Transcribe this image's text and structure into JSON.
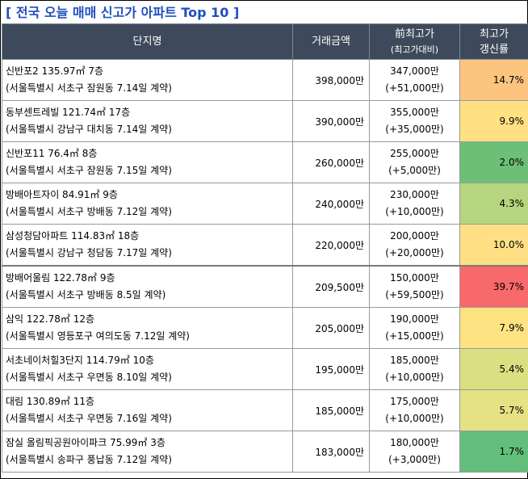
{
  "title": "[ 전국 오늘 매매 신고가 아파트 Top 10 ]",
  "headers": {
    "complex": "단지명",
    "amount": "거래금액",
    "prev_main": "前최고가",
    "prev_sub": "(최고가대비)",
    "rate_line1": "최고가",
    "rate_line2": "갱신률"
  },
  "rows": [
    {
      "name": "신반포2 135.97㎡ 7층",
      "location": "(서울특별시 서초구 잠원동 7.14일 계약)",
      "amount": "398,000만",
      "prev": "347,000만",
      "diff": "(+51,000만)",
      "rate": "14.7%",
      "rate_color": "#fcc47f"
    },
    {
      "name": "동부센트레빌 121.74㎡ 17층",
      "location": "(서울특별시 강남구 대치동 7.14일 계약)",
      "amount": "390,000만",
      "prev": "355,000만",
      "diff": "(+35,000만)",
      "rate": "9.9%",
      "rate_color": "#ffe184"
    },
    {
      "name": "신반포11 76.4㎡ 8층",
      "location": "(서울특별시 서초구 잠원동 7.15일 계약)",
      "amount": "260,000만",
      "prev": "255,000만",
      "diff": "(+5,000만)",
      "rate": "2.0%",
      "rate_color": "#6dbe76"
    },
    {
      "name": "방배아트자이 84.91㎡ 9층",
      "location": "(서울특별시 서초구 방배동 7.12일 계약)",
      "amount": "240,000만",
      "prev": "230,000만",
      "diff": "(+10,000만)",
      "rate": "4.3%",
      "rate_color": "#b6d57e"
    },
    {
      "name": "삼성청담아파트 114.83㎡ 18층",
      "location": "(서울특별시 강남구 청담동 7.17일 계약)",
      "amount": "220,000만",
      "prev": "200,000만",
      "diff": "(+20,000만)",
      "rate": "10.0%",
      "rate_color": "#ffe084"
    },
    {
      "name": "방배어울림 122.78㎡ 9층",
      "location": "(서울특별시 서초구 방배동 8.5일 계약)",
      "amount": "209,500만",
      "prev": "150,000만",
      "diff": "(+59,500만)",
      "rate": "39.7%",
      "rate_color": "#f8696b"
    },
    {
      "name": "삼익 122.78㎡ 12층",
      "location": "(서울특별시 영등포구 여의도동 7.12일 계약)",
      "amount": "205,000만",
      "prev": "190,000만",
      "diff": "(+15,000만)",
      "rate": "7.9%",
      "rate_color": "#fee383"
    },
    {
      "name": "서초네이처힐3단지 114.79㎡ 10층",
      "location": "(서울특별시 서초구 우면동 8.10일 계약)",
      "amount": "195,000만",
      "prev": "185,000만",
      "diff": "(+10,000만)",
      "rate": "5.4%",
      "rate_color": "#dae081"
    },
    {
      "name": "대림 130.89㎡ 11층",
      "location": "(서울특별시 서초구 우면동 7.16일 계약)",
      "amount": "185,000만",
      "prev": "175,000만",
      "diff": "(+10,000만)",
      "rate": "5.7%",
      "rate_color": "#e4e283"
    },
    {
      "name": "잠실 올림픽공원아이파크 75.99㎡ 3층",
      "location": "(서울특별시 송파구 풍납동 7.12일 계약)",
      "amount": "183,000만",
      "prev": "180,000만",
      "diff": "(+3,000만)",
      "rate": "1.7%",
      "rate_color": "#63be7b"
    }
  ]
}
